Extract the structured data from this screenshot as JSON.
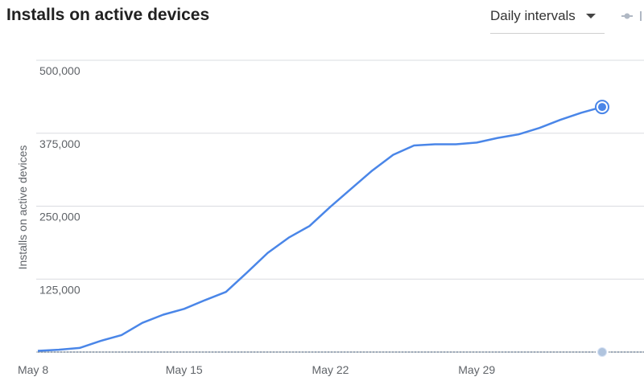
{
  "header": {
    "title": "Installs on active devices",
    "interval_select": {
      "value": "Daily intervals"
    }
  },
  "colors": {
    "series": "#4a86e8",
    "previous": "#b0c4de",
    "grid": "#dadce0"
  },
  "icons": {
    "dropdown": "caret-down-icon",
    "legend": "legend-line-dot-icon"
  },
  "chart_data": {
    "type": "line",
    "title": "Installs on active devices",
    "ylabel": "Installs on active devices",
    "xlabel": "",
    "ylim": [
      0,
      500000
    ],
    "yticks": [
      125000,
      250000,
      375000,
      500000
    ],
    "ytick_labels": [
      "125,000",
      "250,000",
      "375,000",
      "500,000"
    ],
    "xtick_labels": [
      "May 8",
      "May 15",
      "May 22",
      "May 29"
    ],
    "grid": true,
    "legend": "top-right",
    "series": [
      {
        "x": [
          "May 8",
          "May 9",
          "May 10",
          "May 11",
          "May 12",
          "May 13",
          "May 14",
          "May 15",
          "May 16",
          "May 17",
          "May 18",
          "May 19",
          "May 20",
          "May 21",
          "May 22",
          "May 23",
          "May 24",
          "May 25",
          "May 26",
          "May 27",
          "May 28",
          "May 29",
          "May 30",
          "May 31",
          "Jun 1",
          "Jun 2",
          "Jun 3",
          "Jun 4"
        ],
        "values": [
          2000,
          4000,
          7000,
          19000,
          29000,
          50000,
          64000,
          74000,
          89000,
          103000,
          136000,
          170000,
          196000,
          216000,
          249000,
          280000,
          311000,
          338000,
          354000,
          356000,
          356000,
          359000,
          367000,
          373000,
          384000,
          398000,
          410000,
          420000
        ]
      },
      {
        "x": [
          "May 8",
          "Jun 4"
        ],
        "values": [
          0,
          0
        ]
      }
    ]
  }
}
